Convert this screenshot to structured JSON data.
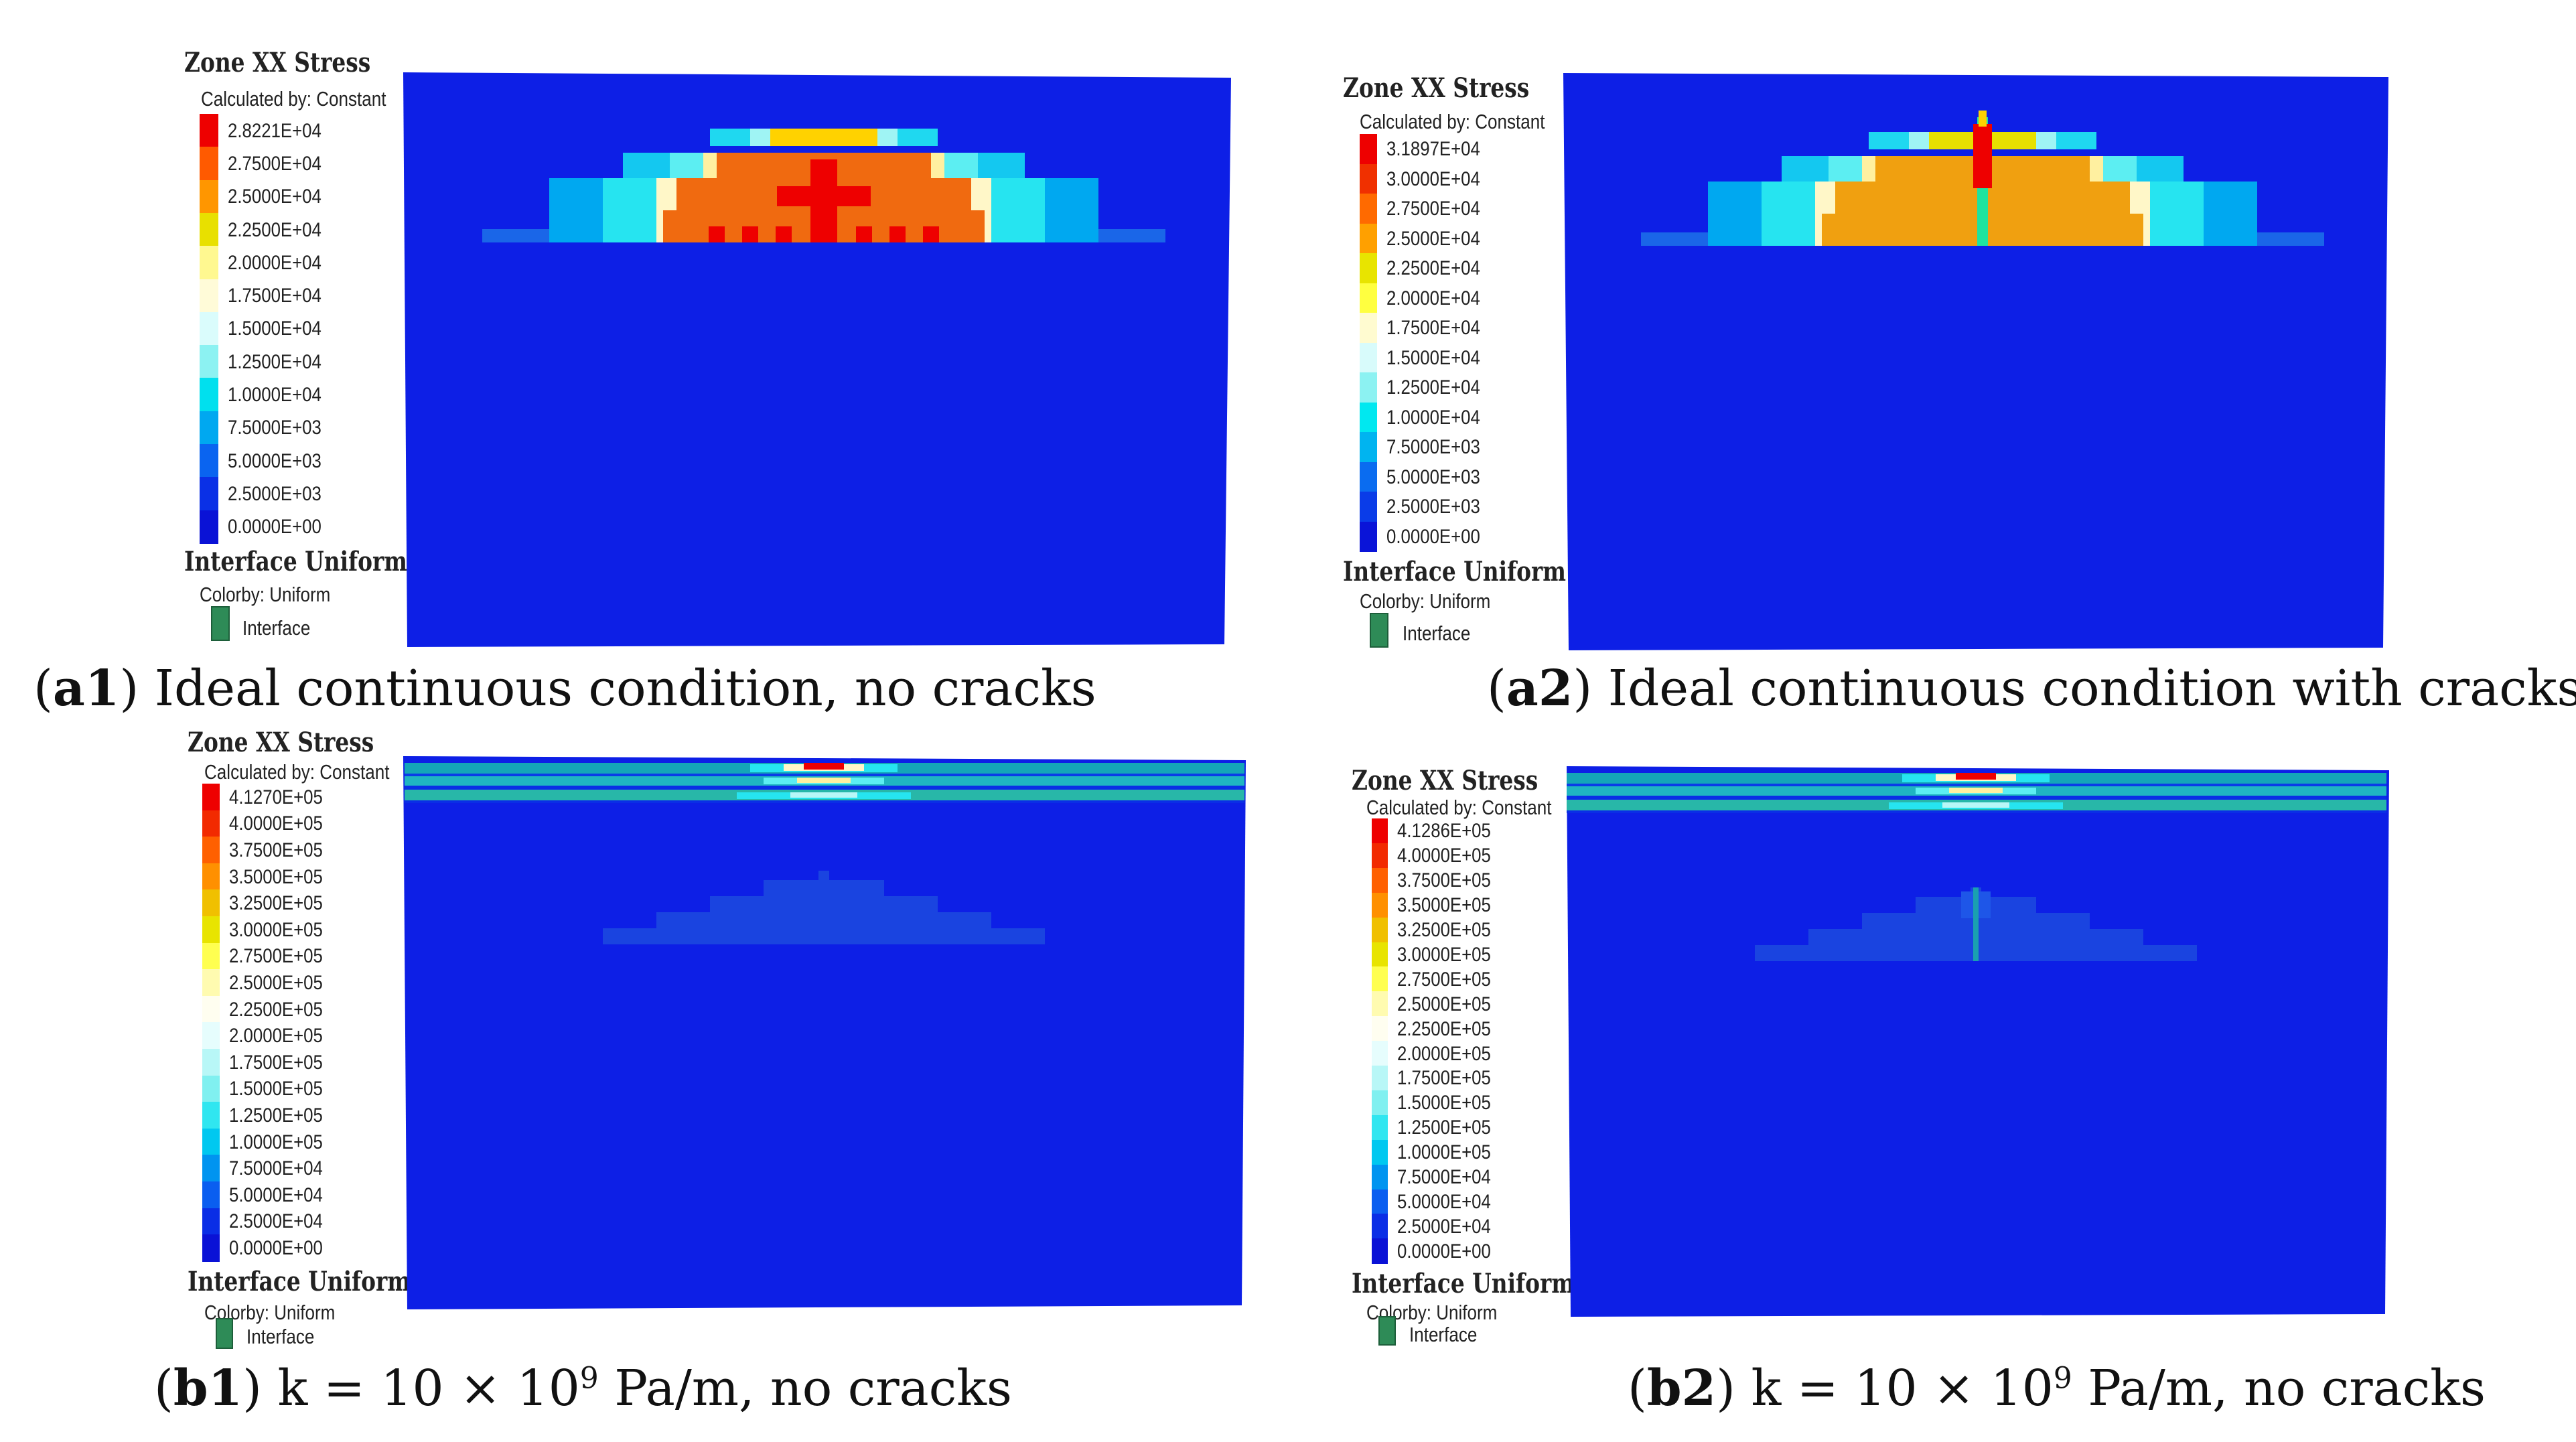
{
  "panels": [
    {
      "id": "a1",
      "legend_title": "Zone XX Stress",
      "calc_label": "Calculated by: Constant",
      "values": [
        "2.8221E+04",
        "2.7500E+04",
        "2.5000E+04",
        "2.2500E+04",
        "2.0000E+04",
        "1.7500E+04",
        "1.5000E+04",
        "1.2500E+04",
        "1.0000E+04",
        "7.5000E+03",
        "5.0000E+03",
        "2.5000E+03",
        "0.0000E+00"
      ],
      "iface_title": "Interface Uniform",
      "iface_colorby": "Colorby: Uniform",
      "iface_label": "Interface",
      "caption_id": "a1",
      "caption_text": " Ideal continuous condition, no cracks"
    },
    {
      "id": "a2",
      "legend_title": "Zone XX Stress",
      "calc_label": "Calculated by: Constant",
      "values": [
        "3.1897E+04",
        "3.0000E+04",
        "2.7500E+04",
        "2.5000E+04",
        "2.2500E+04",
        "2.0000E+04",
        "1.7500E+04",
        "1.5000E+04",
        "1.2500E+04",
        "1.0000E+04",
        "7.5000E+03",
        "5.0000E+03",
        "2.5000E+03",
        "0.0000E+00"
      ],
      "iface_title": "Interface Uniform",
      "iface_colorby": "Colorby: Uniform",
      "iface_label": "Interface",
      "caption_id": "a2",
      "caption_text": " Ideal continuous condition with cracks"
    },
    {
      "id": "b1",
      "legend_title": "Zone XX Stress",
      "calc_label": "Calculated by: Constant",
      "values": [
        "4.1270E+05",
        "4.0000E+05",
        "3.7500E+05",
        "3.5000E+05",
        "3.2500E+05",
        "3.0000E+05",
        "2.7500E+05",
        "2.5000E+05",
        "2.2500E+05",
        "2.0000E+05",
        "1.7500E+05",
        "1.5000E+05",
        "1.2500E+05",
        "1.0000E+05",
        "7.5000E+04",
        "5.0000E+04",
        "2.5000E+04",
        "0.0000E+00"
      ],
      "iface_title": "Interface Uniform",
      "iface_colorby": "Colorby: Uniform",
      "iface_label": "Interface",
      "caption_id": "b1",
      "caption_pre": " k = 10 × 10",
      "caption_sup": "9",
      "caption_post": " Pa/m, no cracks"
    },
    {
      "id": "b2",
      "legend_title": "Zone XX Stress",
      "calc_label": "Calculated by: Constant",
      "values": [
        "4.1286E+05",
        "4.0000E+05",
        "3.7500E+05",
        "3.5000E+05",
        "3.2500E+05",
        "3.0000E+05",
        "2.7500E+05",
        "2.5000E+05",
        "2.2500E+05",
        "2.0000E+05",
        "1.7500E+05",
        "1.5000E+05",
        "1.2500E+05",
        "1.0000E+05",
        "7.5000E+04",
        "5.0000E+04",
        "2.5000E+04",
        "0.0000E+00"
      ],
      "iface_title": "Interface Uniform",
      "iface_colorby": "Colorby: Uniform",
      "iface_label": "Interface",
      "caption_id": "b2",
      "caption_pre": " k = 10 × 10",
      "caption_sup": "9",
      "caption_post": " Pa/m, no cracks"
    }
  ],
  "colors": {
    "background_field": "#0d1fe6",
    "scale14": [
      "#ee0000",
      "#f03000",
      "#ff6a00",
      "#ffa000",
      "#e8e400",
      "#ffff40",
      "#fffbd0",
      "#d8fbfb",
      "#8cf2f2",
      "#00e8f0",
      "#00b4f0",
      "#0a6cf0",
      "#0a3ce8",
      "#0a14d8"
    ],
    "scale13": [
      "#ee0000",
      "#ff5a00",
      "#ff9600",
      "#e8e000",
      "#fff890",
      "#fffbd8",
      "#dafcfc",
      "#8cf2f2",
      "#00e0ee",
      "#00a8f0",
      "#0a64f0",
      "#0a30e6",
      "#0a12d6"
    ]
  }
}
